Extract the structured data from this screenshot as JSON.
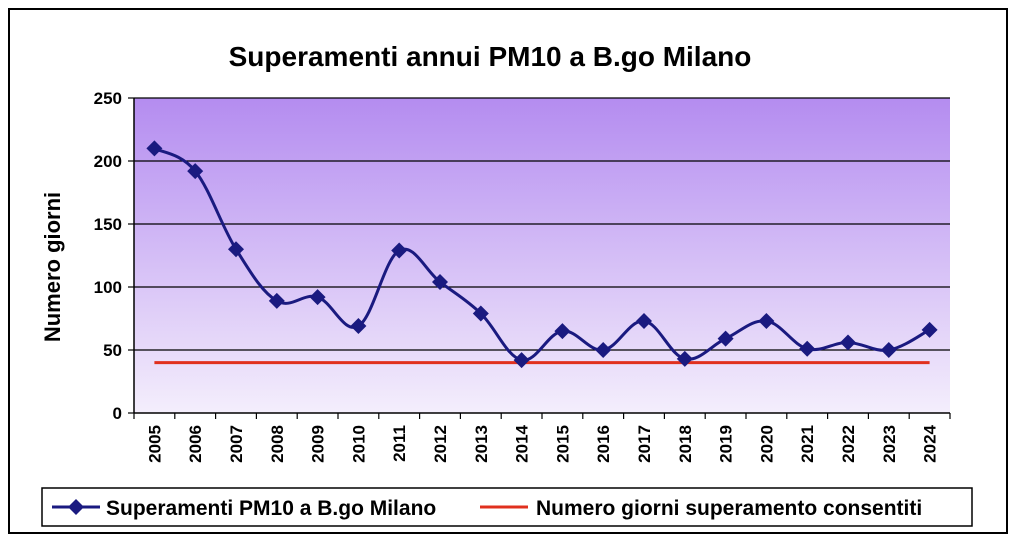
{
  "chart_data": {
    "type": "line",
    "title": "Superamenti annui PM10 a B.go Milano",
    "xlabel": "",
    "ylabel": "Numero giorni",
    "ylim": [
      0,
      250
    ],
    "yticks": [
      "0",
      "50",
      "100",
      "150",
      "200",
      "250"
    ],
    "categories": [
      "2005",
      "2006",
      "2007",
      "2008",
      "2009",
      "2010",
      "2011",
      "2012",
      "2013",
      "2014",
      "2015",
      "2016",
      "2017",
      "2018",
      "2019",
      "2020",
      "2021",
      "2022",
      "2023",
      "2024"
    ],
    "grid": true,
    "legend_position": "bottom",
    "series": [
      {
        "name": "Superamenti PM10 a B.go Milano",
        "color": "#1a1a80",
        "marker": "diamond",
        "values": [
          210,
          192,
          130,
          89,
          92,
          69,
          129,
          104,
          79,
          42,
          65,
          50,
          73,
          43,
          59,
          73,
          51,
          56,
          50,
          66
        ]
      },
      {
        "name": "Numero giorni superamento consentiti",
        "color": "#e0301e",
        "marker": "none",
        "values": [
          40,
          40,
          40,
          40,
          40,
          40,
          40,
          40,
          40,
          40,
          40,
          40,
          40,
          40,
          40,
          40,
          40,
          40,
          40,
          40
        ]
      }
    ],
    "plot_gradient": {
      "top": "#b48cf0",
      "bottom": "#f4eefc"
    }
  }
}
